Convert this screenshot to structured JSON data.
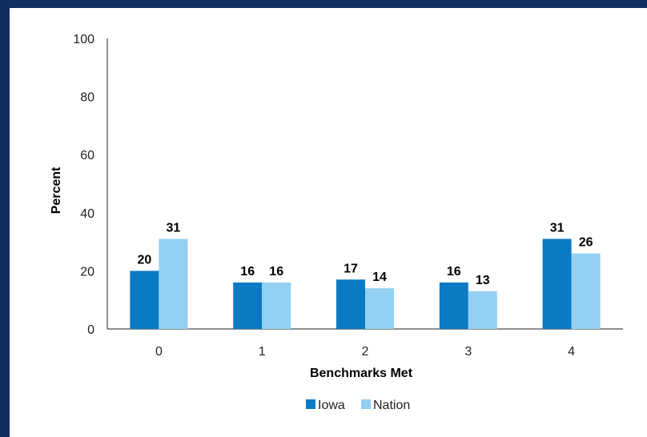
{
  "colors": {
    "frame": "#0f2f5f",
    "background": "#ffffff",
    "axis": "#222222"
  },
  "chart_data": {
    "type": "bar",
    "title": "",
    "xlabel": "Benchmarks Met",
    "ylabel": "Percent",
    "categories": [
      "0",
      "1",
      "2",
      "3",
      "4"
    ],
    "series": [
      {
        "name": "Iowa",
        "color": "#0a7ac4",
        "values": [
          20,
          16,
          17,
          16,
          31
        ]
      },
      {
        "name": "Nation",
        "color": "#93d0f1",
        "values": [
          31,
          16,
          14,
          13,
          26
        ]
      }
    ],
    "ylim": [
      0,
      100
    ],
    "yticks": [
      "0",
      "20",
      "40",
      "60",
      "80",
      "100"
    ],
    "grid": false,
    "legend": "bottom"
  }
}
